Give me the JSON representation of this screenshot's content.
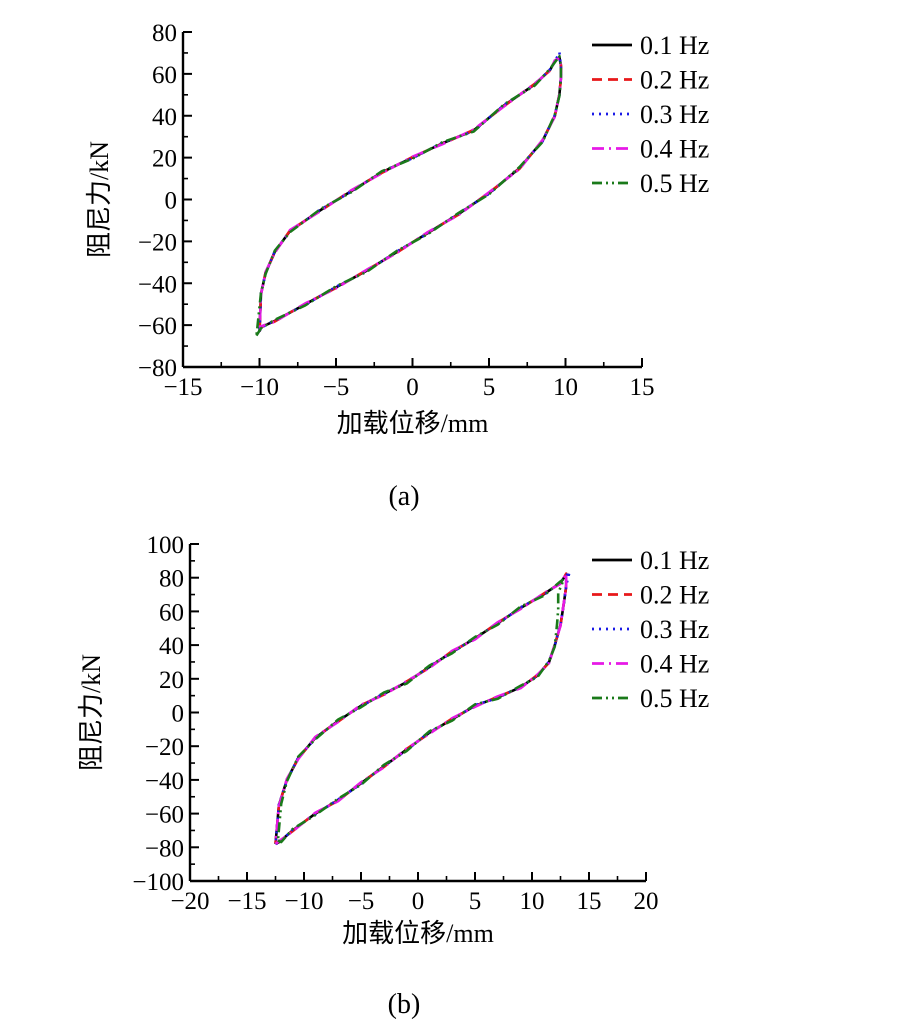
{
  "chart_data": [
    {
      "type": "line",
      "caption": "(a)",
      "xlabel": "加载位移/mm",
      "ylabel": "阻尼力/kN",
      "xlim": [
        -15,
        15
      ],
      "ylim": [
        -80,
        80
      ],
      "xticks": [
        -15,
        -10,
        -5,
        0,
        5,
        10,
        15
      ],
      "yticks": [
        -80,
        -60,
        -40,
        -20,
        0,
        20,
        40,
        60,
        80
      ],
      "xtick_labels": [
        "−15",
        "−10",
        "−5",
        "0",
        "5",
        "10",
        "15"
      ],
      "ytick_labels": [
        "−80",
        "−60",
        "−40",
        "−20",
        "0",
        "20",
        "40",
        "60",
        "80"
      ],
      "legend_position": "top-right, outside plot",
      "grid": false,
      "series": [
        {
          "name": "0.1 Hz",
          "color": "#000000",
          "style": "solid",
          "jitter": 0.0,
          "x": [
            -10.0,
            -9.9,
            -9.0,
            -7.0,
            -5.0,
            -3.0,
            -1.0,
            1.0,
            3.0,
            5.0,
            7.0,
            8.5,
            9.3,
            9.6,
            9.7,
            9.7,
            9.6,
            9.3,
            9.0,
            8.0,
            6.0,
            4.0,
            2.0,
            0.0,
            -2.0,
            -4.0,
            -6.0,
            -8.0,
            -9.0,
            -9.6,
            -9.9,
            -10.0
          ],
          "y": [
            -63,
            -61,
            -58,
            -50,
            -42,
            -34,
            -25,
            -16,
            -7,
            3,
            15,
            28,
            40,
            50,
            58,
            64,
            68,
            66,
            62,
            55,
            45,
            33,
            27,
            20,
            13,
            4,
            -5,
            -15,
            -25,
            -35,
            -45,
            -63
          ]
        },
        {
          "name": "0.2 Hz",
          "color": "#e8181a",
          "style": "dash",
          "jitter": 0.6,
          "x": [
            -10.0,
            -9.9,
            -9.0,
            -7.0,
            -5.0,
            -3.0,
            -1.0,
            1.0,
            3.0,
            5.0,
            7.0,
            8.5,
            9.3,
            9.6,
            9.7,
            9.7,
            9.6,
            9.3,
            9.0,
            8.0,
            6.0,
            4.0,
            2.0,
            0.0,
            -2.0,
            -4.0,
            -6.0,
            -8.0,
            -9.0,
            -9.6,
            -9.9,
            -10.0
          ],
          "y": [
            -63,
            -61,
            -58,
            -50,
            -42,
            -34,
            -25,
            -16,
            -7,
            3,
            15,
            28,
            40,
            50,
            58,
            64,
            68,
            66,
            62,
            55,
            45,
            33,
            27,
            20,
            13,
            4,
            -5,
            -15,
            -25,
            -35,
            -45,
            -63
          ]
        },
        {
          "name": "0.3 Hz",
          "color": "#1a1ae6",
          "style": "dot",
          "jitter": -0.6,
          "x": [
            -10.0,
            -9.9,
            -9.0,
            -7.0,
            -5.0,
            -3.0,
            -1.0,
            1.0,
            3.0,
            5.0,
            7.0,
            8.5,
            9.3,
            9.6,
            9.7,
            9.7,
            9.6,
            9.3,
            9.0,
            8.0,
            6.0,
            4.0,
            2.0,
            0.0,
            -2.0,
            -4.0,
            -6.0,
            -8.0,
            -9.0,
            -9.6,
            -9.9,
            -10.0
          ],
          "y": [
            -63,
            -61,
            -58,
            -50,
            -42,
            -34,
            -25,
            -16,
            -7,
            3,
            15,
            28,
            40,
            50,
            58,
            64,
            70,
            66,
            62,
            55,
            45,
            33,
            27,
            20,
            13,
            4,
            -5,
            -15,
            -25,
            -35,
            -45,
            -63
          ]
        },
        {
          "name": "0.4 Hz",
          "color": "#e619e6",
          "style": "dashdot",
          "jitter": 0.9,
          "x": [
            -10.0,
            -9.9,
            -9.0,
            -7.0,
            -5.0,
            -3.0,
            -1.0,
            1.0,
            3.0,
            5.0,
            7.0,
            8.5,
            9.3,
            9.6,
            9.7,
            9.7,
            9.6,
            9.3,
            9.0,
            8.0,
            6.0,
            4.0,
            2.0,
            0.0,
            -2.0,
            -4.0,
            -6.0,
            -8.0,
            -9.0,
            -9.6,
            -9.9,
            -10.0
          ],
          "y": [
            -63,
            -61,
            -58,
            -50,
            -42,
            -34,
            -25,
            -16,
            -7,
            3,
            15,
            28,
            40,
            50,
            58,
            64,
            68,
            66,
            62,
            55,
            45,
            33,
            27,
            20,
            13,
            4,
            -5,
            -15,
            -25,
            -35,
            -45,
            -63
          ]
        },
        {
          "name": "0.5 Hz",
          "color": "#1a7a1a",
          "style": "dashdotdot",
          "jitter": -1.1,
          "x": [
            -10.2,
            -9.9,
            -9.0,
            -7.0,
            -5.0,
            -3.0,
            -1.0,
            1.0,
            3.0,
            5.0,
            7.0,
            8.5,
            9.3,
            9.6,
            9.7,
            9.7,
            9.6,
            9.3,
            9.0,
            8.0,
            6.0,
            4.0,
            2.0,
            0.0,
            -2.0,
            -4.0,
            -6.0,
            -8.0,
            -9.0,
            -9.6,
            -9.9,
            -10.2
          ],
          "y": [
            -65,
            -61,
            -58,
            -50,
            -42,
            -34,
            -25,
            -16,
            -7,
            3,
            15,
            28,
            40,
            50,
            58,
            64,
            68,
            66,
            62,
            55,
            45,
            33,
            27,
            20,
            13,
            4,
            -5,
            -15,
            -25,
            -35,
            -45,
            -65
          ]
        }
      ]
    },
    {
      "type": "line",
      "caption": "(b)",
      "xlabel": "加载位移/mm",
      "ylabel": "阻尼力/kN",
      "xlim": [
        -20,
        20
      ],
      "ylim": [
        -100,
        100
      ],
      "xticks": [
        -20,
        -15,
        -10,
        -5,
        0,
        5,
        10,
        15,
        20
      ],
      "yticks": [
        -100,
        -80,
        -60,
        -40,
        -20,
        0,
        20,
        40,
        60,
        80,
        100
      ],
      "xtick_labels": [
        "−20",
        "−15",
        "−10",
        "−5",
        "0",
        "5",
        "10",
        "15",
        "20"
      ],
      "ytick_labels": [
        "−100",
        "−80",
        "−60",
        "−40",
        "−20",
        "0",
        "20",
        "40",
        "60",
        "80",
        "100"
      ],
      "legend_position": "top-right, outside plot",
      "grid": false,
      "series": [
        {
          "name": "0.1 Hz",
          "color": "#000000",
          "style": "solid",
          "jitter": 0.0,
          "x": [
            -12.5,
            -12.2,
            -11.0,
            -9.0,
            -7.0,
            -5.0,
            -3.0,
            -1.0,
            1.0,
            3.0,
            5.0,
            7.0,
            9.0,
            10.5,
            11.5,
            12.0,
            12.5,
            12.8,
            13.0,
            13.0,
            12.5,
            11.0,
            9.0,
            7.0,
            5.0,
            3.0,
            1.0,
            -1.0,
            -3.0,
            -5.0,
            -7.0,
            -9.0,
            -10.5,
            -11.5,
            -12.2,
            -12.5
          ],
          "y": [
            -78,
            -77,
            -70,
            -60,
            -52,
            -42,
            -32,
            -22,
            -12,
            -4,
            4,
            9,
            15,
            22,
            30,
            40,
            52,
            65,
            75,
            82,
            77,
            70,
            62,
            53,
            44,
            36,
            27,
            18,
            11,
            4,
            -5,
            -15,
            -27,
            -40,
            -55,
            -78
          ]
        },
        {
          "name": "0.2 Hz",
          "color": "#e8181a",
          "style": "dash",
          "jitter": 0.7,
          "x": [
            -12.5,
            -12.2,
            -11.0,
            -9.0,
            -7.0,
            -5.0,
            -3.0,
            -1.0,
            1.0,
            3.0,
            5.0,
            7.0,
            9.0,
            10.5,
            11.5,
            12.0,
            12.5,
            12.8,
            13.0,
            13.0,
            12.5,
            11.0,
            9.0,
            7.0,
            5.0,
            3.0,
            1.0,
            -1.0,
            -3.0,
            -5.0,
            -7.0,
            -9.0,
            -10.5,
            -11.5,
            -12.2,
            -12.5
          ],
          "y": [
            -78,
            -77,
            -70,
            -60,
            -52,
            -42,
            -32,
            -22,
            -12,
            -4,
            4,
            9,
            15,
            22,
            30,
            40,
            52,
            65,
            75,
            82,
            77,
            70,
            62,
            53,
            44,
            36,
            27,
            18,
            11,
            4,
            -5,
            -15,
            -27,
            -40,
            -55,
            -78
          ]
        },
        {
          "name": "0.3 Hz",
          "color": "#1a1ae6",
          "style": "dot",
          "jitter": -0.7,
          "x": [
            -12.5,
            -12.2,
            -11.0,
            -9.0,
            -7.0,
            -5.0,
            -3.0,
            -1.0,
            1.0,
            3.0,
            5.0,
            7.0,
            9.0,
            10.5,
            11.5,
            12.0,
            12.5,
            12.8,
            13.0,
            13.3,
            12.5,
            11.0,
            9.0,
            7.0,
            5.0,
            3.0,
            1.0,
            -1.0,
            -3.0,
            -5.0,
            -7.0,
            -9.0,
            -10.5,
            -11.5,
            -12.2,
            -12.5
          ],
          "y": [
            -78,
            -77,
            -70,
            -60,
            -52,
            -42,
            -32,
            -22,
            -12,
            -4,
            4,
            9,
            15,
            22,
            30,
            40,
            52,
            65,
            75,
            84,
            77,
            70,
            62,
            53,
            44,
            36,
            27,
            18,
            11,
            4,
            -5,
            -15,
            -27,
            -40,
            -55,
            -78
          ]
        },
        {
          "name": "0.4 Hz",
          "color": "#e619e6",
          "style": "dashdot",
          "jitter": 1.0,
          "x": [
            -12.5,
            -12.2,
            -11.0,
            -9.0,
            -7.0,
            -5.0,
            -3.0,
            -1.0,
            1.0,
            3.0,
            5.0,
            7.0,
            9.0,
            10.5,
            11.5,
            12.0,
            12.5,
            12.8,
            13.0,
            13.0,
            12.5,
            11.0,
            9.0,
            7.0,
            5.0,
            3.0,
            1.0,
            -1.0,
            -3.0,
            -5.0,
            -7.0,
            -9.0,
            -10.5,
            -11.5,
            -12.2,
            -12.5
          ],
          "y": [
            -78,
            -77,
            -70,
            -60,
            -52,
            -42,
            -32,
            -22,
            -12,
            -4,
            4,
            9,
            15,
            22,
            30,
            40,
            52,
            65,
            75,
            82,
            77,
            70,
            62,
            53,
            44,
            36,
            27,
            18,
            11,
            4,
            -5,
            -15,
            -27,
            -40,
            -55,
            -78
          ]
        },
        {
          "name": "0.5 Hz",
          "color": "#1a7a1a",
          "style": "dashdotdot",
          "jitter": -1.4,
          "x": [
            -12.3,
            -12.0,
            -11.0,
            -9.0,
            -7.0,
            -5.0,
            -3.0,
            -1.0,
            1.0,
            3.0,
            5.0,
            7.0,
            9.0,
            10.5,
            11.5,
            12.0,
            12.2,
            12.3,
            12.3,
            12.8,
            12.5,
            11.0,
            9.0,
            7.0,
            5.0,
            3.0,
            1.0,
            -1.0,
            -3.0,
            -5.0,
            -7.0,
            -9.0,
            -10.5,
            -11.5,
            -12.0,
            -12.3
          ],
          "y": [
            -76,
            -76,
            -70,
            -60,
            -52,
            -42,
            -32,
            -22,
            -12,
            -4,
            4,
            9,
            15,
            22,
            30,
            40,
            52,
            62,
            70,
            80,
            77,
            70,
            62,
            53,
            44,
            36,
            27,
            18,
            11,
            4,
            -5,
            -15,
            -27,
            -40,
            -55,
            -76
          ]
        }
      ]
    }
  ]
}
